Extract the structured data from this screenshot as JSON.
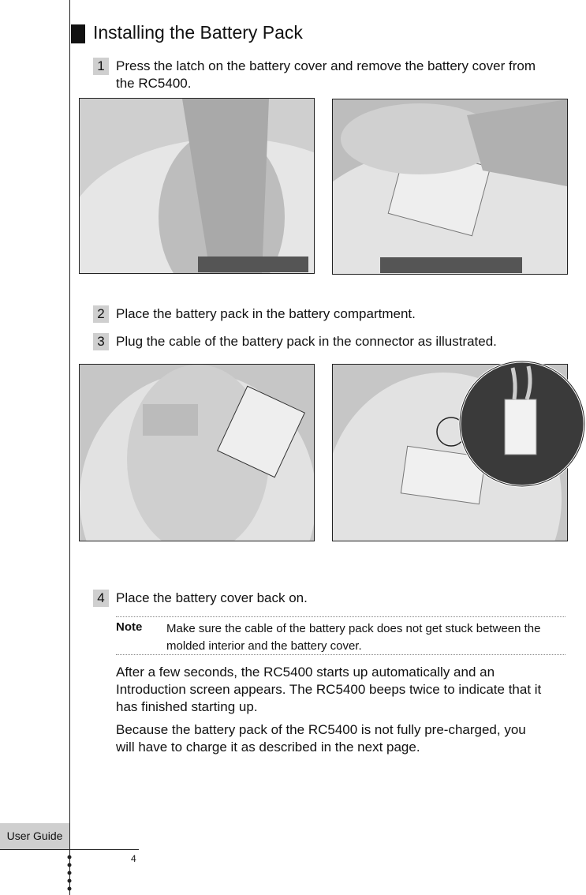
{
  "header": {
    "title": "Installing the Battery Pack"
  },
  "steps": [
    {
      "number": "1",
      "text": "Press the latch on the battery cover and remove the battery cover from the RC5400."
    },
    {
      "number": "2",
      "text": "Place the battery pack in the battery compartment."
    },
    {
      "number": "3",
      "text": "Plug the cable of the battery pack in the connector as illustrated."
    },
    {
      "number": "4",
      "text": "Place the battery cover back on."
    }
  ],
  "note": {
    "label": "Note",
    "text": "Make sure the cable of the battery pack does not get stuck between the molded interior and the battery cover."
  },
  "paragraphs": [
    "After a few seconds, the RC5400 starts up automatically and an Introduction screen appears. The RC5400 beeps twice to indicate that it has finished starting up.",
    "Because the battery pack of the RC5400 is not fully pre-charged, you will have to charge it as described in the next page."
  ],
  "footer": {
    "label": "User Guide",
    "page": "4"
  }
}
